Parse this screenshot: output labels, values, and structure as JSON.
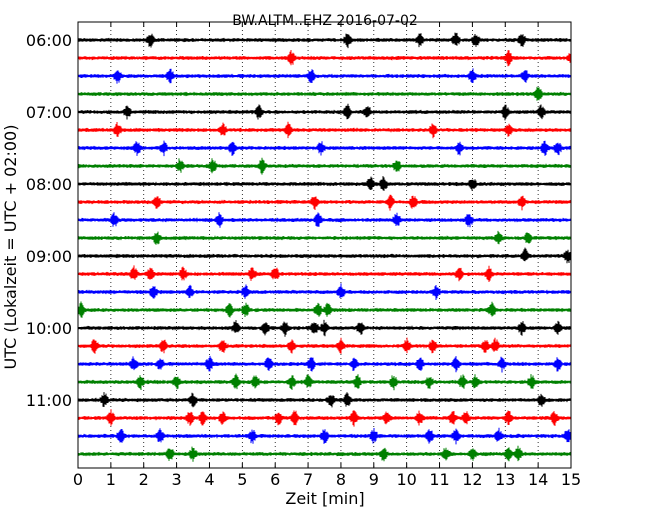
{
  "chart_data": {
    "type": "line",
    "title": "BW.ALTM..EHZ 2016-07-02",
    "xlabel": "Zeit  [min]",
    "ylabel": "UTC (Lokalzeit = UTC + 02:00)",
    "xlim": [
      0,
      15
    ],
    "x_ticks": [
      0,
      1,
      2,
      3,
      4,
      5,
      6,
      7,
      8,
      9,
      10,
      11,
      12,
      13,
      14,
      15
    ],
    "y_tick_labels": [
      "06:00",
      "07:00",
      "08:00",
      "09:00",
      "10:00",
      "11:00"
    ],
    "trace_interval_min": 15,
    "trace_start_times": [
      "06:00",
      "06:15",
      "06:30",
      "06:45",
      "07:00",
      "07:15",
      "07:30",
      "07:45",
      "08:00",
      "08:15",
      "08:30",
      "08:45",
      "09:00",
      "09:15",
      "09:30",
      "09:45",
      "10:00",
      "10:15",
      "10:30",
      "10:45",
      "11:00",
      "11:15",
      "11:30",
      "11:45"
    ],
    "colors": [
      "#000000",
      "#ff0000",
      "#0000ff",
      "#008000"
    ],
    "grid": "vertical dotted",
    "events_min": [
      [
        2.2,
        8.2,
        10.4,
        11.5,
        12.1,
        13.5
      ],
      [
        6.5,
        13.1,
        15.0
      ],
      [
        1.2,
        2.8,
        7.1,
        12.0,
        13.6
      ],
      [
        14.0
      ],
      [
        1.5,
        5.5,
        8.2,
        8.8,
        13.0,
        14.1
      ],
      [
        1.2,
        4.4,
        6.4,
        10.8,
        13.1
      ],
      [
        1.8,
        2.6,
        4.7,
        7.4,
        11.6,
        14.2,
        14.6
      ],
      [
        3.1,
        4.1,
        5.6,
        9.7
      ],
      [
        8.9,
        9.3,
        12.0
      ],
      [
        2.4,
        7.2,
        9.5,
        10.2,
        13.5
      ],
      [
        1.1,
        4.3,
        7.3,
        9.7,
        11.9
      ],
      [
        2.4,
        12.8,
        13.7
      ],
      [
        13.6,
        14.9
      ],
      [
        1.7,
        2.2,
        3.2,
        5.3,
        6.0,
        11.6,
        12.5
      ],
      [
        2.3,
        3.4,
        5.1,
        8.0,
        10.9
      ],
      [
        0.1,
        4.6,
        5.1,
        7.3,
        7.6,
        12.6
      ],
      [
        4.8,
        5.7,
        6.3,
        7.2,
        7.5,
        8.6,
        13.5,
        14.6
      ],
      [
        0.5,
        2.6,
        4.4,
        6.5,
        8.0,
        10.0,
        10.8,
        12.4,
        12.7
      ],
      [
        1.7,
        2.5,
        4.0,
        5.8,
        7.1,
        8.4,
        10.4,
        11.5,
        12.9,
        14.6
      ],
      [
        1.9,
        3.0,
        4.8,
        5.4,
        6.5,
        7.0,
        8.5,
        9.6,
        10.7,
        11.7,
        12.1,
        13.8
      ],
      [
        0.8,
        3.5,
        7.7,
        8.2,
        14.1
      ],
      [
        1.0,
        3.4,
        3.8,
        4.4,
        6.1,
        6.6,
        8.4,
        9.4,
        10.4,
        11.4,
        11.8,
        13.1,
        14.5
      ],
      [
        1.3,
        2.5,
        5.3,
        7.5,
        9.0,
        10.7,
        11.5,
        12.8,
        14.9
      ],
      [
        2.8,
        3.5,
        9.3,
        11.2,
        12.0,
        13.1,
        13.4
      ]
    ]
  }
}
